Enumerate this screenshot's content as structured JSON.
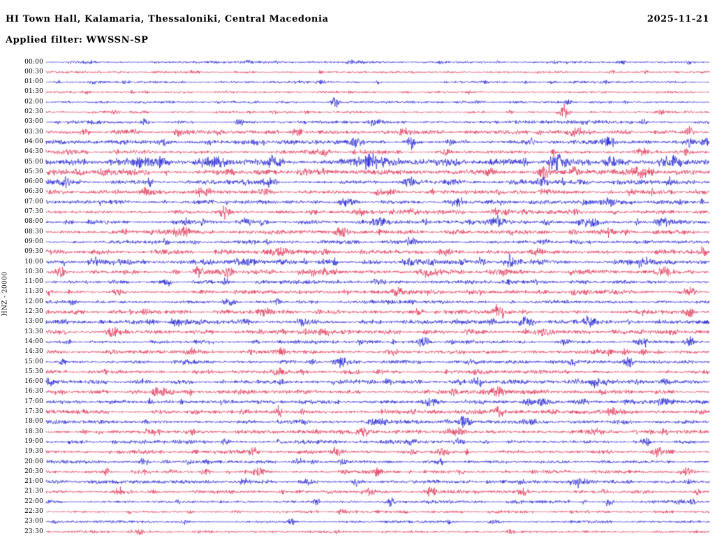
{
  "header": {
    "title": "HI Town Hall, Kalamaria, Thessaloniki, Central Macedonia",
    "date": "2025-11-21",
    "filter": "Applied filter: WWSSN-SP"
  },
  "chart_data": {
    "type": "line",
    "subtype": "helicorder-seismogram",
    "title": "HI Town Hall, Kalamaria, Thessaloniki, Central Macedonia",
    "date": "2025-11-21",
    "filter": "WWSSN-SP",
    "axis_label": "HNZ - 20000",
    "minutes_per_line": 30,
    "time_range": [
      "00:00",
      "24:00"
    ],
    "grid": false,
    "legend": "none",
    "colors": {
      "blue": "#0000cd",
      "red": "#dc143c"
    },
    "rows": [
      {
        "t": "00:00",
        "c": "blue",
        "a": 0.7,
        "e": [
          [
            0.87,
            1.5,
            0.003
          ]
        ]
      },
      {
        "t": "00:30",
        "c": "red",
        "a": 0.7,
        "e": []
      },
      {
        "t": "01:00",
        "c": "blue",
        "a": 0.7,
        "e": [
          [
            0.5,
            1.2,
            0.004
          ]
        ]
      },
      {
        "t": "01:30",
        "c": "red",
        "a": 0.7,
        "e": [
          [
            0.13,
            1.5,
            0.003
          ]
        ]
      },
      {
        "t": "02:00",
        "c": "blue",
        "a": 0.8,
        "e": [
          [
            0.435,
            5.5,
            0.006
          ]
        ]
      },
      {
        "t": "02:30",
        "c": "red",
        "a": 0.8,
        "e": [
          [
            0.78,
            8,
            0.007
          ],
          [
            0.7,
            1.8,
            0.004
          ]
        ]
      },
      {
        "t": "03:00",
        "c": "blue",
        "a": 1.0,
        "e": [
          [
            0.5,
            1.8,
            0.01
          ],
          [
            0.9,
            1.8,
            0.008
          ]
        ]
      },
      {
        "t": "03:30",
        "c": "red",
        "a": 1.3,
        "e": [
          [
            0.06,
            2.5,
            0.006
          ],
          [
            0.38,
            3,
            0.01
          ],
          [
            0.55,
            2.2,
            0.008
          ],
          [
            0.8,
            2.8,
            0.01
          ],
          [
            0.97,
            3.5,
            0.006
          ]
        ]
      },
      {
        "t": "04:00",
        "c": "blue",
        "a": 1.3,
        "e": [
          [
            0.47,
            4.5,
            0.008
          ],
          [
            0.55,
            2.5,
            0.006
          ],
          [
            0.73,
            5,
            0.006
          ],
          [
            0.85,
            3.5,
            0.01
          ],
          [
            0.97,
            2.8,
            0.006
          ]
        ]
      },
      {
        "t": "04:30",
        "c": "red",
        "a": 1.2,
        "e": [
          [
            0.42,
            3.5,
            0.01
          ],
          [
            0.6,
            2.2,
            0.008
          ],
          [
            0.9,
            2.8,
            0.01
          ]
        ]
      },
      {
        "t": "05:00",
        "c": "blue",
        "a": 2.2,
        "e": [
          [
            0.25,
            2.5,
            0.02
          ],
          [
            0.5,
            2.5,
            0.02
          ],
          [
            0.77,
            6,
            0.012
          ],
          [
            0.85,
            4.5,
            0.01
          ],
          [
            0.95,
            3.5,
            0.01
          ]
        ]
      },
      {
        "t": "05:30",
        "c": "red",
        "a": 1.8,
        "e": [
          [
            0.05,
            2.5,
            0.01
          ],
          [
            0.75,
            5,
            0.01
          ],
          [
            0.9,
            3.5,
            0.015
          ]
        ]
      },
      {
        "t": "06:00",
        "c": "blue",
        "a": 1.5,
        "e": [
          [
            0.03,
            3.5,
            0.008
          ],
          [
            0.3,
            2.5,
            0.01
          ],
          [
            0.55,
            2.5,
            0.012
          ],
          [
            0.75,
            3,
            0.01
          ]
        ]
      },
      {
        "t": "06:30",
        "c": "red",
        "a": 1.3,
        "e": [
          [
            0.15,
            2.5,
            0.008
          ],
          [
            0.33,
            2.5,
            0.008
          ],
          [
            0.52,
            2.2,
            0.01
          ],
          [
            0.75,
            2.2,
            0.008
          ]
        ]
      },
      {
        "t": "07:00",
        "c": "blue",
        "a": 1.3,
        "e": [
          [
            0.45,
            2.5,
            0.01
          ],
          [
            0.62,
            3.5,
            0.008
          ],
          [
            0.85,
            2.5,
            0.01
          ]
        ]
      },
      {
        "t": "07:30",
        "c": "red",
        "a": 1.2,
        "e": [
          [
            0.27,
            4.5,
            0.008
          ],
          [
            0.55,
            2.2,
            0.01
          ],
          [
            0.8,
            2.2,
            0.01
          ]
        ]
      },
      {
        "t": "08:00",
        "c": "blue",
        "a": 1.3,
        "e": [
          [
            0.5,
            2.5,
            0.012
          ],
          [
            0.68,
            2.5,
            0.01
          ],
          [
            0.82,
            3.5,
            0.015
          ],
          [
            0.93,
            2.5,
            0.01
          ]
        ]
      },
      {
        "t": "08:30",
        "c": "red",
        "a": 1.4,
        "e": [
          [
            0.2,
            2.5,
            0.01
          ],
          [
            0.45,
            2.5,
            0.012
          ],
          [
            0.85,
            3.5,
            0.012
          ]
        ]
      },
      {
        "t": "09:00",
        "c": "blue",
        "a": 1.2,
        "e": [
          [
            0.55,
            2.5,
            0.01
          ],
          [
            0.75,
            2.2,
            0.01
          ]
        ]
      },
      {
        "t": "09:30",
        "c": "red",
        "a": 1.4,
        "e": [
          [
            0.35,
            2.5,
            0.012
          ],
          [
            0.6,
            2.5,
            0.01
          ],
          [
            0.99,
            4,
            0.006
          ]
        ]
      },
      {
        "t": "10:00",
        "c": "blue",
        "a": 1.6,
        "e": [
          [
            0.3,
            2.5,
            0.015
          ],
          [
            0.55,
            2.5,
            0.015
          ],
          [
            0.9,
            3.5,
            0.012
          ]
        ]
      },
      {
        "t": "10:30",
        "c": "red",
        "a": 1.5,
        "e": [
          [
            0.02,
            4,
            0.008
          ],
          [
            0.58,
            2.5,
            0.012
          ],
          [
            0.93,
            3.5,
            0.01
          ]
        ]
      },
      {
        "t": "11:00",
        "c": "blue",
        "a": 1.2,
        "e": [
          [
            0.27,
            2.5,
            0.008
          ],
          [
            0.5,
            2.2,
            0.01
          ]
        ]
      },
      {
        "t": "11:30",
        "c": "red",
        "a": 1.3,
        "e": [
          [
            0.53,
            3.5,
            0.008
          ],
          [
            0.97,
            3.5,
            0.008
          ]
        ]
      },
      {
        "t": "12:00",
        "c": "blue",
        "a": 1.1,
        "e": [
          [
            0.04,
            2.5,
            0.006
          ],
          [
            0.35,
            2.2,
            0.008
          ]
        ]
      },
      {
        "t": "12:30",
        "c": "red",
        "a": 1.2,
        "e": [
          [
            0.33,
            2.5,
            0.01
          ],
          [
            0.68,
            2.2,
            0.008
          ],
          [
            0.97,
            3.5,
            0.006
          ]
        ]
      },
      {
        "t": "13:00",
        "c": "blue",
        "a": 1.4,
        "e": [
          [
            0.3,
            2.5,
            0.012
          ],
          [
            0.62,
            2.5,
            0.01
          ],
          [
            0.72,
            3.5,
            0.008
          ],
          [
            0.82,
            3.5,
            0.01
          ]
        ]
      },
      {
        "t": "13:30",
        "c": "red",
        "a": 1.3,
        "e": [
          [
            0.1,
            2.5,
            0.01
          ],
          [
            0.42,
            2.5,
            0.01
          ],
          [
            0.75,
            2.5,
            0.012
          ]
        ]
      },
      {
        "t": "14:00",
        "c": "blue",
        "a": 1.2,
        "e": [
          [
            0.57,
            4.5,
            0.008
          ],
          [
            0.78,
            2.5,
            0.01
          ],
          [
            0.97,
            3.5,
            0.008
          ]
        ]
      },
      {
        "t": "14:30",
        "c": "red",
        "a": 1.2,
        "e": [
          [
            0.22,
            2.5,
            0.01
          ],
          [
            0.52,
            2.5,
            0.01
          ],
          [
            0.9,
            2.5,
            0.008
          ]
        ]
      },
      {
        "t": "15:00",
        "c": "blue",
        "a": 1.1,
        "e": [
          [
            0.44,
            2.5,
            0.008
          ],
          [
            0.88,
            3.5,
            0.008
          ]
        ]
      },
      {
        "t": "15:30",
        "c": "red",
        "a": 1.2,
        "e": [
          [
            0.35,
            2.2,
            0.01
          ],
          [
            0.65,
            2.2,
            0.01
          ]
        ]
      },
      {
        "t": "16:00",
        "c": "blue",
        "a": 1.3,
        "e": [
          [
            0.005,
            3.5,
            0.005
          ],
          [
            0.65,
            4.5,
            0.008
          ],
          [
            0.8,
            2.5,
            0.01
          ]
        ]
      },
      {
        "t": "16:30",
        "c": "red",
        "a": 1.3,
        "e": [
          [
            0.18,
            2.5,
            0.01
          ],
          [
            0.68,
            3.5,
            0.01
          ]
        ]
      },
      {
        "t": "17:00",
        "c": "blue",
        "a": 1.3,
        "e": [
          [
            0.58,
            3.5,
            0.01
          ],
          [
            0.75,
            2.5,
            0.01
          ],
          [
            0.93,
            2.5,
            0.008
          ]
        ]
      },
      {
        "t": "17:30",
        "c": "red",
        "a": 1.3,
        "e": [
          [
            0.3,
            2.5,
            0.01
          ],
          [
            0.68,
            3.5,
            0.012
          ],
          [
            0.85,
            2.5,
            0.01
          ]
        ]
      },
      {
        "t": "18:00",
        "c": "blue",
        "a": 1.3,
        "e": [
          [
            0.5,
            2.5,
            0.012
          ],
          [
            0.63,
            4.5,
            0.008
          ],
          [
            0.73,
            2.5,
            0.01
          ]
        ]
      },
      {
        "t": "18:30",
        "c": "red",
        "a": 1.2,
        "e": [
          [
            0.48,
            3.5,
            0.008
          ],
          [
            0.62,
            2.5,
            0.01
          ]
        ]
      },
      {
        "t": "19:00",
        "c": "blue",
        "a": 1.2,
        "e": [
          [
            0.27,
            2.5,
            0.008
          ],
          [
            0.55,
            2.5,
            0.008
          ],
          [
            0.62,
            2.5,
            0.006
          ]
        ]
      },
      {
        "t": "19:30",
        "c": "red",
        "a": 1.2,
        "e": [
          [
            0.44,
            4.5,
            0.008
          ],
          [
            0.6,
            2.5,
            0.008
          ],
          [
            0.92,
            3.5,
            0.008
          ]
        ]
      },
      {
        "t": "20:00",
        "c": "blue",
        "a": 1.0,
        "e": [
          [
            0.38,
            2.8,
            0.008
          ]
        ]
      },
      {
        "t": "20:30",
        "c": "red",
        "a": 1.1,
        "e": [
          [
            0.24,
            2.5,
            0.008
          ],
          [
            0.32,
            3.5,
            0.008
          ],
          [
            0.5,
            2.5,
            0.008
          ]
        ]
      },
      {
        "t": "21:00",
        "c": "blue",
        "a": 1.1,
        "e": [
          [
            0.3,
            2.5,
            0.01
          ],
          [
            0.47,
            3.5,
            0.008
          ],
          [
            0.8,
            3.5,
            0.008
          ]
        ]
      },
      {
        "t": "21:30",
        "c": "red",
        "a": 1.1,
        "e": [
          [
            0.11,
            3.5,
            0.008
          ],
          [
            0.58,
            3.5,
            0.008
          ],
          [
            0.72,
            2.5,
            0.008
          ]
        ]
      },
      {
        "t": "22:00",
        "c": "blue",
        "a": 1.0,
        "e": [
          [
            0.52,
            3.5,
            0.008
          ],
          [
            0.85,
            2.5,
            0.006
          ]
        ]
      },
      {
        "t": "22:30",
        "c": "red",
        "a": 0.8,
        "e": []
      },
      {
        "t": "23:00",
        "c": "blue",
        "a": 0.8,
        "e": []
      },
      {
        "t": "23:30",
        "c": "red",
        "a": 0.8,
        "e": []
      }
    ]
  }
}
